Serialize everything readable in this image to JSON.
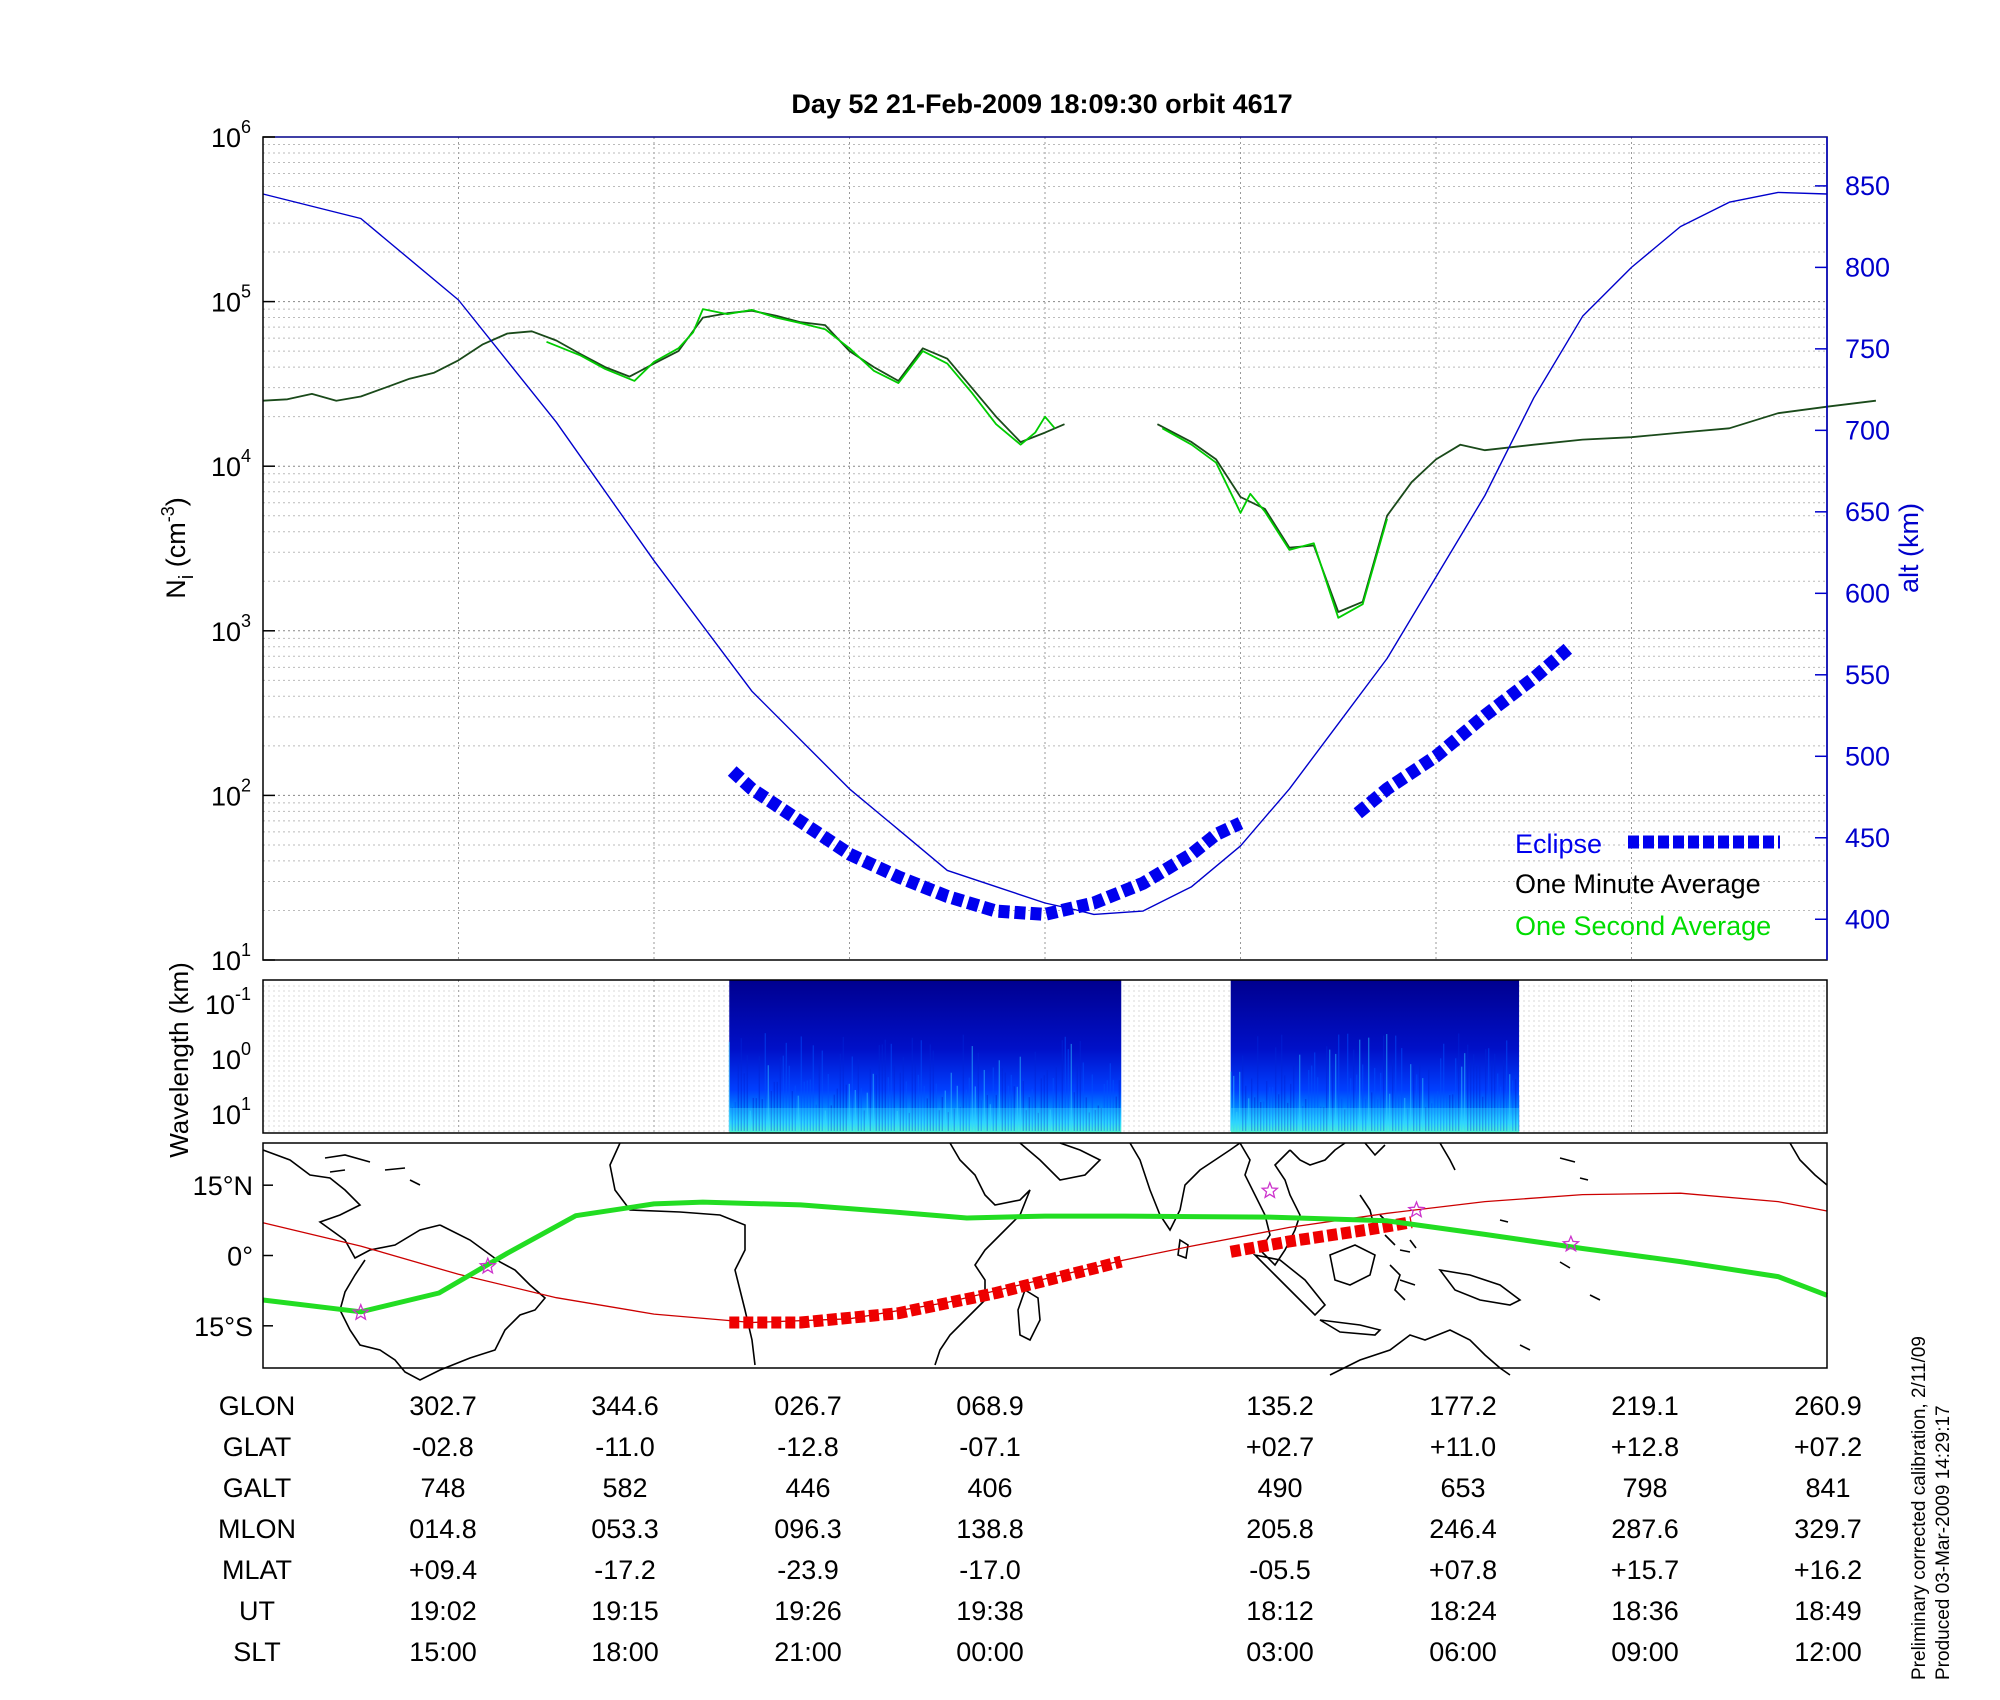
{
  "title": "Day 52  21-Feb-2009 18:09:30   orbit 4617",
  "footnote": {
    "line1": "Preliminary corrected calibration, 2/11/09",
    "line2": "Produced 03-Mar-2009 14:29:17"
  },
  "colors": {
    "altitude": "#0000cc",
    "eclipse": "#0000ee",
    "minute_avg": "#000000",
    "second_avg": "#00dd00",
    "map_track": "#cc0000",
    "map_eclipse": "#ee0000",
    "magnetic_equator": "#22dd22",
    "star_marker": "#cc33cc"
  },
  "chart_data": [
    {
      "type": "line",
      "title": "Day 52  21-Feb-2009 18:09:30   orbit 4617",
      "ylabel": "N",
      "ylabel_sub": "i",
      "ylabel_unit": " (cm",
      "ylabel_exp": "-3",
      "ylabel_close": ")",
      "y_scale": "log",
      "ylim": [
        10,
        1000000
      ],
      "y_ticks": [
        {
          "base": "10",
          "exp": "6",
          "value": 1000000
        },
        {
          "base": "10",
          "exp": "5",
          "value": 100000
        },
        {
          "base": "10",
          "exp": "4",
          "value": 10000
        },
        {
          "base": "10",
          "exp": "3",
          "value": 1000
        },
        {
          "base": "10",
          "exp": "2",
          "value": 100
        },
        {
          "base": "10",
          "exp": "1",
          "value": 10
        }
      ],
      "y2label": "alt (km)",
      "y2lim": [
        375,
        880
      ],
      "y2_ticks": [
        "850",
        "800",
        "750",
        "700",
        "650",
        "600",
        "550",
        "500",
        "450",
        "400"
      ],
      "x_ticks": [
        "19:02",
        "19:15",
        "19:26",
        "19:38",
        "18:12",
        "18:24",
        "18:36",
        "18:49"
      ],
      "grid": true,
      "legend_position": "bottom-right",
      "legend": [
        {
          "label": "Eclipse",
          "color": "#0000ee",
          "style": "thick-dashed"
        },
        {
          "label": "One Minute Average",
          "color": "#000000",
          "style": "text"
        },
        {
          "label": "One Second Average",
          "color": "#00dd00",
          "style": "text"
        }
      ],
      "series": [
        {
          "name": "One Minute Average",
          "axis": "left",
          "color": "#1a4a1a",
          "segments": [
            [
              [
                0.0,
                25000
              ],
              [
                0.25,
                25500
              ],
              [
                0.5,
                27500
              ],
              [
                0.75,
                25000
              ],
              [
                1.0,
                26500
              ],
              [
                1.25,
                30000
              ],
              [
                1.5,
                34000
              ],
              [
                1.75,
                37000
              ],
              [
                2.0,
                44000
              ],
              [
                2.25,
                55000
              ],
              [
                2.5,
                64000
              ],
              [
                2.75,
                66000
              ],
              [
                3.0,
                58000
              ],
              [
                3.25,
                48000
              ],
              [
                3.5,
                40000
              ],
              [
                3.75,
                35000
              ],
              [
                4.0,
                42000
              ],
              [
                4.25,
                50000
              ],
              [
                4.5,
                80000
              ],
              [
                4.75,
                85000
              ],
              [
                5.0,
                88000
              ],
              [
                5.25,
                82000
              ],
              [
                5.5,
                75000
              ],
              [
                5.75,
                72000
              ],
              [
                6.0,
                50000
              ],
              [
                6.25,
                40000
              ],
              [
                6.5,
                33000
              ],
              [
                6.75,
                52000
              ],
              [
                7.0,
                45000
              ],
              [
                7.25,
                30000
              ],
              [
                7.5,
                20000
              ],
              [
                7.75,
                14000
              ],
              [
                8.0,
                16000
              ],
              [
                8.2,
                18000
              ]
            ],
            [
              [
                9.15,
                18000
              ],
              [
                9.5,
                14000
              ],
              [
                9.75,
                11000
              ],
              [
                10.0,
                6500
              ],
              [
                10.25,
                5500
              ],
              [
                10.5,
                3200
              ],
              [
                10.75,
                3300
              ],
              [
                11.0,
                1300
              ],
              [
                11.25,
                1500
              ],
              [
                11.5,
                5000
              ],
              [
                11.75,
                8000
              ],
              [
                12.0,
                11000
              ],
              [
                12.25,
                13500
              ],
              [
                12.5,
                12500
              ],
              [
                13.0,
                13500
              ],
              [
                13.5,
                14500
              ],
              [
                14.0,
                15000
              ],
              [
                14.5,
                16000
              ],
              [
                15.0,
                17000
              ],
              [
                15.5,
                21000
              ],
              [
                16.0,
                23000
              ],
              [
                16.5,
                25000
              ]
            ]
          ]
        },
        {
          "name": "One Second Average",
          "axis": "left",
          "color": "#00cc00",
          "segments": [
            [
              [
                2.9,
                57000
              ],
              [
                3.25,
                47000
              ],
              [
                3.5,
                39000
              ],
              [
                3.8,
                33000
              ],
              [
                4.0,
                43000
              ],
              [
                4.25,
                52000
              ],
              [
                4.4,
                65000
              ],
              [
                4.5,
                90000
              ],
              [
                4.75,
                84000
              ],
              [
                5.0,
                89000
              ],
              [
                5.25,
                80000
              ],
              [
                5.5,
                74000
              ],
              [
                5.75,
                68000
              ],
              [
                6.0,
                52000
              ],
              [
                6.25,
                38000
              ],
              [
                6.5,
                32000
              ],
              [
                6.75,
                50000
              ],
              [
                7.0,
                42000
              ],
              [
                7.25,
                28000
              ],
              [
                7.5,
                18000
              ],
              [
                7.75,
                13500
              ],
              [
                7.9,
                16000
              ],
              [
                8.0,
                20000
              ],
              [
                8.1,
                17000
              ]
            ],
            [
              [
                9.2,
                17000
              ],
              [
                9.5,
                13500
              ],
              [
                9.75,
                10500
              ],
              [
                9.95,
                6000
              ],
              [
                10.0,
                5200
              ],
              [
                10.1,
                6800
              ],
              [
                10.25,
                5300
              ],
              [
                10.5,
                3100
              ],
              [
                10.75,
                3400
              ],
              [
                11.0,
                1200
              ],
              [
                11.25,
                1450
              ],
              [
                11.5,
                4800
              ]
            ]
          ]
        },
        {
          "name": "alt (km)",
          "axis": "right",
          "color": "#0000cc",
          "segments": [
            [
              [
                0.0,
                845
              ],
              [
                1.0,
                830
              ],
              [
                2.0,
                780
              ],
              [
                3.0,
                705
              ],
              [
                4.0,
                620
              ],
              [
                5.0,
                540
              ],
              [
                6.0,
                480
              ],
              [
                6.5,
                455
              ],
              [
                7.0,
                430
              ],
              [
                7.5,
                420
              ],
              [
                8.0,
                410
              ],
              [
                8.3,
                406
              ],
              [
                8.5,
                403
              ],
              [
                9.0,
                405
              ],
              [
                9.5,
                420
              ],
              [
                10.0,
                445
              ],
              [
                10.5,
                480
              ],
              [
                11.0,
                520
              ],
              [
                11.5,
                560
              ],
              [
                12.0,
                610
              ],
              [
                12.5,
                660
              ],
              [
                13.0,
                720
              ],
              [
                13.5,
                770
              ],
              [
                14.0,
                800
              ],
              [
                14.5,
                825
              ],
              [
                15.0,
                840
              ],
              [
                15.5,
                846
              ],
              [
                16.0,
                845
              ]
            ]
          ]
        },
        {
          "name": "Eclipse",
          "axis": "right",
          "color": "#0000ee",
          "segments": [
            [
              [
                4.8,
                491
              ],
              [
                5.0,
                480
              ],
              [
                5.5,
                460
              ],
              [
                6.0,
                440
              ],
              [
                6.5,
                426
              ],
              [
                7.0,
                414
              ],
              [
                7.5,
                405
              ],
              [
                8.0,
                403
              ],
              [
                8.5,
                410
              ],
              [
                9.0,
                422
              ],
              [
                9.5,
                440
              ],
              [
                9.75,
                452
              ],
              [
                10.0,
                459
              ]
            ],
            [
              [
                11.2,
                465
              ],
              [
                11.5,
                480
              ],
              [
                12.0,
                500
              ],
              [
                12.5,
                525
              ],
              [
                13.0,
                548
              ],
              [
                13.35,
                566
              ]
            ]
          ]
        }
      ],
      "x_range": [
        0,
        16
      ]
    },
    {
      "type": "heatmap",
      "ylabel": "Wavelength (km)",
      "y_ticks": [
        {
          "base": "10",
          "exp": "-1"
        },
        {
          "base": "10",
          "exp": "0"
        },
        {
          "base": "10",
          "exp": "1"
        }
      ],
      "blocks": [
        {
          "x_start": 4.77,
          "x_end": 8.78,
          "colormap": "jet"
        },
        {
          "x_start": 9.9,
          "x_end": 12.85,
          "colormap": "jet"
        }
      ],
      "x_range": [
        0,
        16
      ]
    },
    {
      "type": "line",
      "y_ticks": [
        "15°N",
        "0°",
        "15°S"
      ],
      "ylim": [
        -24,
        24
      ],
      "series": [
        {
          "name": "satellite-track",
          "color": "#cc0000",
          "points": [
            [
              0,
              7
            ],
            [
              1,
              2
            ],
            [
              2,
              -4
            ],
            [
              3,
              -9
            ],
            [
              4,
              -12.5
            ],
            [
              5,
              -14.3
            ],
            [
              6,
              -13.5
            ],
            [
              7,
              -10
            ],
            [
              8,
              -5
            ],
            [
              8.8,
              -1
            ],
            [
              9.5,
              2
            ],
            [
              10.5,
              6
            ],
            [
              11.5,
              9
            ],
            [
              12.5,
              11.5
            ],
            [
              13.5,
              13
            ],
            [
              14.5,
              13.3
            ],
            [
              15.5,
              11.5
            ],
            [
              16,
              9.5
            ]
          ]
        },
        {
          "name": "eclipse-track",
          "color": "#ee0000",
          "segments": [
            [
              [
                4.77,
                -14.3
              ],
              [
                5.5,
                -14.3
              ],
              [
                6.5,
                -12.3
              ],
              [
                7.5,
                -8
              ],
              [
                8.78,
                -1.3
              ]
            ],
            [
              [
                9.9,
                0.8
              ],
              [
                10.5,
                3
              ],
              [
                11.3,
                5.5
              ],
              [
                11.75,
                7.1
              ]
            ]
          ]
        },
        {
          "name": "magnetic-equator",
          "color": "#22dd22",
          "points": [
            [
              0,
              -9.5
            ],
            [
              1,
              -12
            ],
            [
              1.8,
              -8
            ],
            [
              2.5,
              0.5
            ],
            [
              3.2,
              8.5
            ],
            [
              4,
              11
            ],
            [
              4.5,
              11.4
            ],
            [
              5.5,
              10.8
            ],
            [
              6.5,
              9.2
            ],
            [
              7.2,
              8
            ],
            [
              8,
              8.4
            ],
            [
              8.8,
              8.4
            ],
            [
              9.5,
              8.3
            ],
            [
              10.3,
              8.2
            ],
            [
              11.5,
              7.4
            ],
            [
              12.5,
              4.5
            ],
            [
              13.5,
              1.5
            ],
            [
              14.5,
              -1.3
            ],
            [
              15.5,
              -4.5
            ],
            [
              16,
              -8.5
            ]
          ]
        }
      ],
      "stars": [
        [
          1.0,
          -12.2
        ],
        [
          2.3,
          -2.3
        ],
        [
          10.3,
          13.8
        ],
        [
          11.8,
          9.7
        ],
        [
          13.38,
          2.4
        ]
      ],
      "x_range": [
        0,
        16
      ]
    }
  ],
  "table": {
    "rows": [
      {
        "label": "GLON",
        "values": [
          "302.7",
          "344.6",
          "026.7",
          "068.9",
          "135.2",
          "177.2",
          "219.1",
          "260.9"
        ]
      },
      {
        "label": "GLAT",
        "values": [
          "-02.8",
          "-11.0",
          "-12.8",
          "-07.1",
          "+02.7",
          "+11.0",
          "+12.8",
          "+07.2"
        ]
      },
      {
        "label": "GALT",
        "values": [
          "748",
          "582",
          "446",
          "406",
          "490",
          "653",
          "798",
          "841"
        ]
      },
      {
        "label": "MLON",
        "values": [
          "014.8",
          "053.3",
          "096.3",
          "138.8",
          "205.8",
          "246.4",
          "287.6",
          "329.7"
        ]
      },
      {
        "label": "MLAT",
        "values": [
          "+09.4",
          "-17.2",
          "-23.9",
          "-17.0",
          "-05.5",
          "+07.8",
          "+15.7",
          "+16.2"
        ]
      },
      {
        "label": "UT",
        "values": [
          "19:02",
          "19:15",
          "19:26",
          "19:38",
          "18:12",
          "18:24",
          "18:36",
          "18:49"
        ]
      },
      {
        "label": "SLT",
        "values": [
          "15:00",
          "18:00",
          "21:00",
          "00:00",
          "03:00",
          "06:00",
          "09:00",
          "12:00"
        ]
      }
    ]
  }
}
